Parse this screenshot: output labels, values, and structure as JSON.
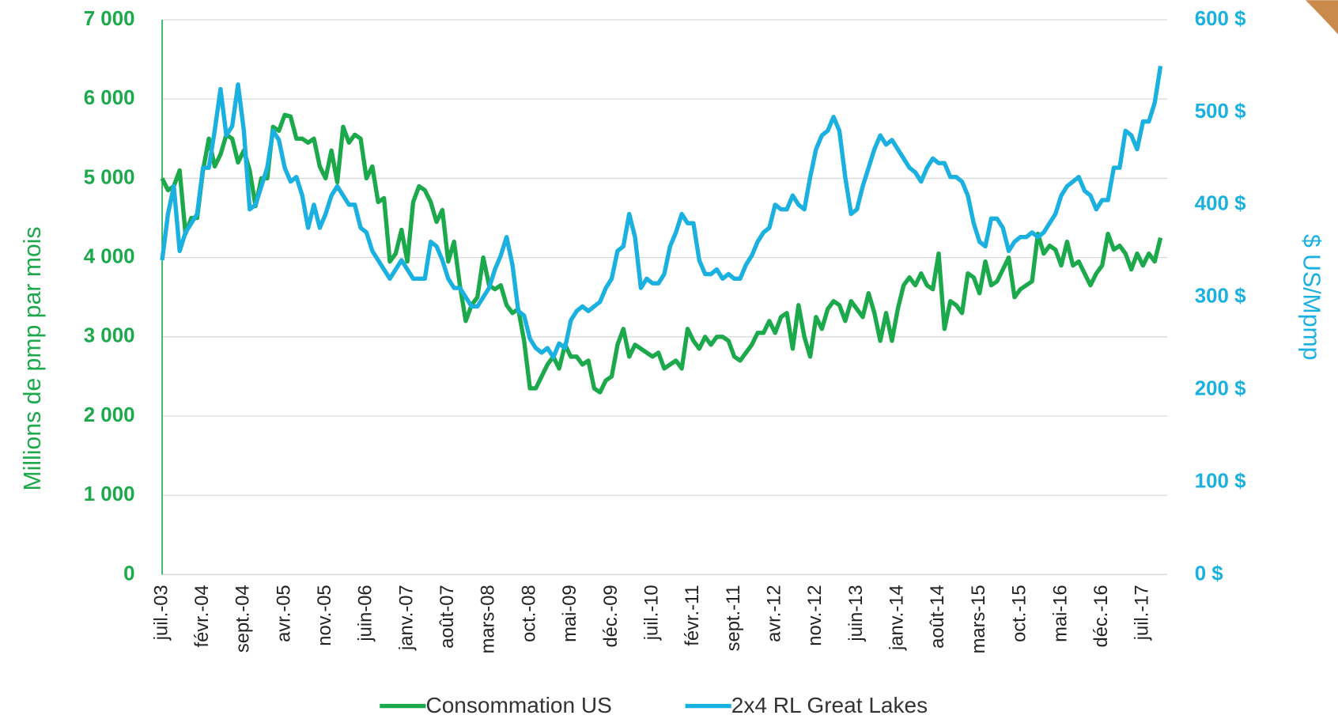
{
  "chart_data": {
    "type": "line",
    "y_label": "Millions de pmp par mois",
    "y2_label": "$ US/Mpmp",
    "categories": [
      "juil.-03",
      null,
      null,
      null,
      null,
      null,
      null,
      "févr.-04",
      null,
      null,
      null,
      null,
      null,
      null,
      "sept.-04",
      null,
      null,
      null,
      null,
      null,
      null,
      "avr.-05",
      null,
      null,
      null,
      null,
      null,
      null,
      "nov.-05",
      null,
      null,
      null,
      null,
      null,
      null,
      "juin-06",
      null,
      null,
      null,
      null,
      null,
      null,
      "janv.-07",
      null,
      null,
      null,
      null,
      null,
      null,
      "août-07",
      null,
      null,
      null,
      null,
      null,
      null,
      "mars-08",
      null,
      null,
      null,
      null,
      null,
      null,
      "oct.-08",
      null,
      null,
      null,
      null,
      null,
      null,
      "mai-09",
      null,
      null,
      null,
      null,
      null,
      null,
      "déc.-09",
      null,
      null,
      null,
      null,
      null,
      null,
      "juil.-10",
      null,
      null,
      null,
      null,
      null,
      null,
      "févr.-11",
      null,
      null,
      null,
      null,
      null,
      null,
      "sept.-11",
      null,
      null,
      null,
      null,
      null,
      null,
      "avr.-12",
      null,
      null,
      null,
      null,
      null,
      null,
      "nov.-12",
      null,
      null,
      null,
      null,
      null,
      null,
      "juin-13",
      null,
      null,
      null,
      null,
      null,
      null,
      "janv.-14",
      null,
      null,
      null,
      null,
      null,
      null,
      "août-14",
      null,
      null,
      null,
      null,
      null,
      null,
      "mars-15",
      null,
      null,
      null,
      null,
      null,
      null,
      "oct.-15",
      null,
      null,
      null,
      null,
      null,
      null,
      "mai-16",
      null,
      null,
      null,
      null,
      null,
      null,
      "déc.-16",
      null,
      null,
      null,
      null,
      null,
      null,
      "juil.-17",
      null,
      null,
      null
    ],
    "series": [
      {
        "name": "Consommation US",
        "color": "#1ba94c",
        "values": [
          5000,
          4850,
          4900,
          5100,
          4300,
          4500,
          4500,
          5100,
          5500,
          5150,
          5300,
          5550,
          5500,
          5200,
          5350,
          5100,
          4650,
          5000,
          5000,
          5650,
          5600,
          5800,
          5780,
          5500,
          5500,
          5450,
          5500,
          5150,
          5000,
          5350,
          4950,
          5650,
          5450,
          5550,
          5500,
          5000,
          5150,
          4700,
          4750,
          3950,
          4050,
          4350,
          3950,
          4700,
          4900,
          4850,
          4700,
          4450,
          4600,
          3950,
          4200,
          3650,
          3200,
          3400,
          3500,
          4000,
          3650,
          3600,
          3650,
          3400,
          3300,
          3350,
          2950,
          2350,
          2350,
          2500,
          2650,
          2750,
          2600,
          2900,
          2750,
          2750,
          2650,
          2700,
          2350,
          2300,
          2450,
          2500,
          2900,
          3100,
          2750,
          2900,
          2850,
          2800,
          2750,
          2800,
          2600,
          2650,
          2700,
          2600,
          3100,
          2950,
          2850,
          3000,
          2900,
          3000,
          3000,
          2950,
          2750,
          2700,
          2800,
          2900,
          3050,
          3050,
          3200,
          3050,
          3250,
          3300,
          2850,
          3400,
          3000,
          2750,
          3250,
          3100,
          3350,
          3450,
          3400,
          3200,
          3450,
          3350,
          3250,
          3550,
          3300,
          2950,
          3300,
          2950,
          3350,
          3650,
          3750,
          3650,
          3800,
          3650,
          3600,
          4050,
          3100,
          3450,
          3400,
          3300,
          3800,
          3750,
          3550,
          3950,
          3650,
          3700,
          3850,
          4000,
          3500,
          3600,
          3650,
          3700,
          4300,
          4050,
          4150,
          4100,
          3900,
          4200,
          3900,
          3950,
          3800,
          3650,
          3800,
          3900,
          4300,
          4100,
          4150,
          4050,
          3850,
          4050,
          3900,
          4050,
          3950,
          4250
        ]
      },
      {
        "name": "2x4 RL Great Lakes",
        "color": "#1ab0e0",
        "axis": "y2",
        "values": [
          340,
          390,
          420,
          350,
          370,
          380,
          390,
          440,
          440,
          480,
          525,
          475,
          485,
          530,
          480,
          395,
          400,
          420,
          440,
          480,
          470,
          440,
          425,
          430,
          410,
          375,
          400,
          375,
          390,
          410,
          420,
          410,
          400,
          400,
          375,
          370,
          350,
          340,
          330,
          320,
          330,
          340,
          330,
          320,
          320,
          320,
          360,
          355,
          340,
          320,
          310,
          310,
          300,
          290,
          290,
          300,
          310,
          330,
          345,
          365,
          335,
          285,
          280,
          255,
          245,
          240,
          245,
          235,
          250,
          245,
          275,
          285,
          290,
          285,
          290,
          295,
          310,
          320,
          350,
          355,
          390,
          365,
          310,
          320,
          315,
          315,
          325,
          355,
          370,
          390,
          380,
          380,
          340,
          325,
          325,
          330,
          320,
          325,
          320,
          320,
          335,
          345,
          360,
          370,
          375,
          400,
          395,
          395,
          410,
          400,
          395,
          430,
          460,
          475,
          480,
          495,
          480,
          430,
          390,
          395,
          420,
          440,
          460,
          475,
          465,
          470,
          460,
          450,
          440,
          435,
          425,
          440,
          450,
          445,
          445,
          430,
          430,
          425,
          410,
          380,
          360,
          355,
          385,
          385,
          375,
          350,
          360,
          365,
          365,
          370,
          365,
          370,
          380,
          390,
          410,
          420,
          425,
          430,
          415,
          410,
          395,
          405,
          405,
          440,
          440,
          480,
          475,
          460,
          490,
          490,
          510,
          550
        ]
      }
    ],
    "ylim": [
      0,
      7000
    ],
    "yticks": [
      0,
      {
        "value": 1000,
        "label": "1 000"
      },
      {
        "value": 2000,
        "label": "2 000"
      },
      {
        "value": 3000,
        "label": "3 000"
      },
      {
        "value": 4000,
        "label": "4 000"
      },
      {
        "value": 5000,
        "label": "5 000"
      },
      {
        "value": 6000,
        "label": "6 000"
      },
      {
        "value": 7000,
        "label": "7 000"
      }
    ],
    "y2lim": [
      0,
      600
    ],
    "y2ticks": [
      {
        "value": 0,
        "label": "0 $"
      },
      {
        "value": 100,
        "label": "100 $"
      },
      {
        "value": 200,
        "label": "200 $"
      },
      {
        "value": 300,
        "label": "300 $"
      },
      {
        "value": 400,
        "label": "400 $"
      },
      {
        "value": 500,
        "label": "500 $"
      },
      {
        "value": 600,
        "label": "600 $"
      }
    ],
    "grid": true
  }
}
